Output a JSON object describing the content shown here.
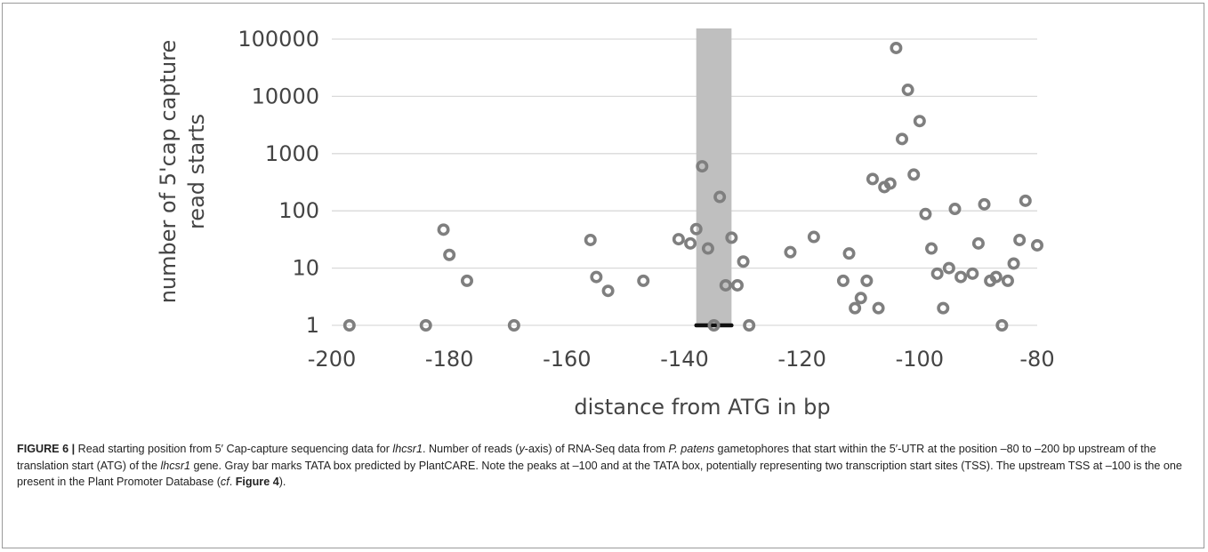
{
  "colors": {
    "grid": "#d9d9d9",
    "marker": "#7f7f7f",
    "tata_bar": "#bfbfbf",
    "axis_text": "#444444",
    "caption_text": "#222222"
  },
  "chart_data": {
    "type": "scatter",
    "ylabel_line1": "number of 5'cap capture",
    "ylabel_line2": "read starts",
    "xlabel": "distance from ATG in bp",
    "xlim": [
      -200,
      -80
    ],
    "ylim": [
      1,
      100000
    ],
    "yscale": "log",
    "grid": true,
    "legend": "none",
    "x_ticks": [
      -200,
      -180,
      -160,
      -140,
      -120,
      -100,
      -80
    ],
    "x_tick_labels": [
      "-200",
      "-180",
      "-160",
      "-140",
      "-120",
      "-100",
      "-80"
    ],
    "y_ticks": [
      1,
      10,
      100,
      1000,
      10000,
      100000
    ],
    "y_tick_labels": [
      "1",
      "10",
      "100",
      "1000",
      "10000",
      "100000"
    ],
    "tata_box": {
      "x_start": -138,
      "x_end": -132
    },
    "tata_marker": {
      "x_start": -138,
      "x_end": -132,
      "y": 1
    },
    "series": [
      {
        "points": [
          [
            -197,
            1
          ],
          [
            -184,
            1
          ],
          [
            -181,
            47
          ],
          [
            -180,
            17
          ],
          [
            -177,
            6
          ],
          [
            -169,
            1
          ],
          [
            -156,
            31
          ],
          [
            -155,
            7
          ],
          [
            -153,
            4
          ],
          [
            -147,
            6
          ],
          [
            -141,
            32
          ],
          [
            -139,
            27
          ],
          [
            -138,
            48
          ],
          [
            -137,
            600
          ],
          [
            -136,
            22
          ],
          [
            -135,
            1
          ],
          [
            -134,
            175
          ],
          [
            -133,
            5
          ],
          [
            -132,
            34
          ],
          [
            -131,
            5
          ],
          [
            -130,
            13
          ],
          [
            -129,
            1
          ],
          [
            -122,
            19
          ],
          [
            -118,
            35
          ],
          [
            -113,
            6
          ],
          [
            -112,
            18
          ],
          [
            -111,
            2
          ],
          [
            -110,
            3
          ],
          [
            -109,
            6
          ],
          [
            -108,
            360
          ],
          [
            -107,
            2
          ],
          [
            -106,
            260
          ],
          [
            -105,
            300
          ],
          [
            -104,
            70000
          ],
          [
            -103,
            1800
          ],
          [
            -102,
            13000
          ],
          [
            -101,
            430
          ],
          [
            -100,
            3700
          ],
          [
            -99,
            88
          ],
          [
            -98,
            22
          ],
          [
            -97,
            8
          ],
          [
            -96,
            2
          ],
          [
            -95,
            10
          ],
          [
            -94,
            108
          ],
          [
            -93,
            7
          ],
          [
            -91,
            8
          ],
          [
            -90,
            27
          ],
          [
            -89,
            130
          ],
          [
            -88,
            6
          ],
          [
            -87,
            7
          ],
          [
            -86,
            1
          ],
          [
            -85,
            6
          ],
          [
            -84,
            12
          ],
          [
            -83,
            31
          ],
          [
            -82,
            150
          ],
          [
            -80,
            25
          ]
        ]
      }
    ]
  },
  "caption": {
    "label": "FIGURE 6 |",
    "t1": " Read starting position from 5′ Cap-capture sequencing data for ",
    "i1": "lhcsr1",
    "t2": ". Number of reads (",
    "i2": "y",
    "t3": "-axis) of RNA-Seq data from ",
    "i3": "P. patens",
    "t4": " gametophores that start within the 5′-UTR at the position –80 to –200 bp upstream of the translation start (ATG) of the ",
    "i4": "lhcsr1",
    "t5": " gene. Gray bar marks TATA box predicted by PlantCARE. Note the peaks at –100 and at the TATA box, potentially representing two transcription start sites (TSS). The upstream TSS at –100 is the one present in the Plant Promoter Database (",
    "i5": "cf",
    "t6": ". ",
    "b1": "Figure 4",
    "t7": ")."
  }
}
